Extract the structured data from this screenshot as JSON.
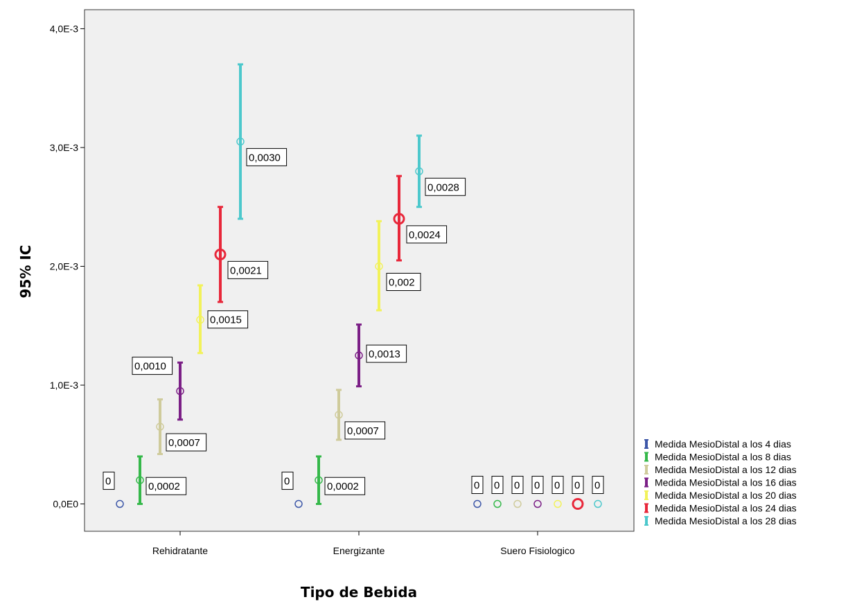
{
  "chart_data": {
    "type": "errorbar",
    "xlabel": "Tipo de Bebida",
    "ylabel": "95% IC",
    "categories": [
      "Rehidratante",
      "Energizante",
      "Suero Fisiologico"
    ],
    "ylim": [
      -0.00023,
      0.00416
    ],
    "yticks": [
      {
        "value": 0.0,
        "label": "0,0E0"
      },
      {
        "value": 0.001,
        "label": "1,0E-3"
      },
      {
        "value": 0.002,
        "label": "2,0E-3"
      },
      {
        "value": 0.003,
        "label": "3,0E-3"
      },
      {
        "value": 0.004,
        "label": "4,0E-3"
      }
    ],
    "grid": false,
    "legend_position": "right",
    "series": [
      {
        "name": "Medida MesioDistal a los 4 dias",
        "color": "#3d57a8",
        "mean": [
          0.0,
          0.0,
          0.0
        ],
        "lower": [
          0.0,
          0.0,
          0.0
        ],
        "upper": [
          0.0,
          0.0,
          0.0
        ],
        "labels": [
          "0",
          "0",
          "0"
        ]
      },
      {
        "name": "Medida MesioDistal a los 8 dias",
        "color": "#35b84a",
        "mean": [
          0.0002,
          0.0002,
          0.0
        ],
        "lower": [
          0.0,
          0.0,
          0.0
        ],
        "upper": [
          0.0004,
          0.0004,
          0.0
        ],
        "labels": [
          "0,0002",
          "0,0002",
          "0"
        ]
      },
      {
        "name": "Medida MesioDistal a los 12 dias",
        "color": "#cfcb9b",
        "mean": [
          0.00065,
          0.00075,
          0.0
        ],
        "lower": [
          0.00042,
          0.00054,
          0.0
        ],
        "upper": [
          0.00088,
          0.00096,
          0.0
        ],
        "labels": [
          "0,0007",
          "0,0007",
          "0"
        ]
      },
      {
        "name": "Medida MesioDistal a los 16 dias",
        "color": "#7b1f86",
        "mean": [
          0.00095,
          0.00125,
          0.0
        ],
        "lower": [
          0.00071,
          0.00099,
          0.0
        ],
        "upper": [
          0.00119,
          0.00151,
          0.0
        ],
        "labels": [
          "0,0010",
          "0,0013",
          "0"
        ]
      },
      {
        "name": "Medida MesioDistal a los 20 dias",
        "color": "#f2f25a",
        "mean": [
          0.00155,
          0.002,
          0.0
        ],
        "lower": [
          0.00127,
          0.00163,
          0.0
        ],
        "upper": [
          0.00184,
          0.00238,
          0.0
        ],
        "labels": [
          "0,0015",
          "0,002",
          "0"
        ]
      },
      {
        "name": "Medida MesioDistal a los 24 dias",
        "color": "#e8273a",
        "mean": [
          0.0021,
          0.0024,
          0.0
        ],
        "lower": [
          0.0017,
          0.00205,
          0.0
        ],
        "upper": [
          0.0025,
          0.00276,
          0.0
        ],
        "labels": [
          "0,0021",
          "0,0024",
          "0"
        ]
      },
      {
        "name": "Medida MesioDistal a los 28 dias",
        "color": "#4cc8cc",
        "mean": [
          0.00305,
          0.0028,
          0.0
        ],
        "lower": [
          0.0024,
          0.0025,
          0.0
        ],
        "upper": [
          0.0037,
          0.0031,
          0.0
        ],
        "labels": [
          "0,0030",
          "0,0028",
          "0"
        ]
      }
    ]
  }
}
